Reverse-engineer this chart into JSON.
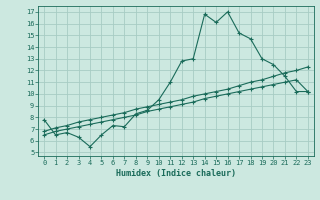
{
  "xlabel": "Humidex (Indice chaleur)",
  "bg_color": "#cce8e0",
  "line_color": "#1a6b5a",
  "grid_color": "#a8ccc4",
  "xlim": [
    -0.5,
    23.5
  ],
  "ylim": [
    4.7,
    17.5
  ],
  "xticks": [
    0,
    1,
    2,
    3,
    4,
    5,
    6,
    7,
    8,
    9,
    10,
    11,
    12,
    13,
    14,
    15,
    16,
    17,
    18,
    19,
    20,
    21,
    22,
    23
  ],
  "yticks": [
    5,
    6,
    7,
    8,
    9,
    10,
    11,
    12,
    13,
    14,
    15,
    16,
    17
  ],
  "line1_x": [
    0,
    1,
    2,
    3,
    4,
    5,
    6,
    7,
    8,
    9,
    10,
    11,
    12,
    13,
    14,
    15,
    16,
    17,
    18,
    19,
    20,
    21,
    22,
    23
  ],
  "line1_y": [
    7.8,
    6.5,
    6.7,
    6.3,
    5.5,
    6.5,
    7.3,
    7.2,
    8.3,
    8.6,
    9.5,
    11.0,
    12.8,
    13.0,
    16.8,
    16.1,
    17.0,
    15.2,
    14.7,
    13.0,
    12.5,
    11.5,
    10.2,
    10.2
  ],
  "line2_x": [
    0,
    1,
    2,
    3,
    4,
    5,
    6,
    7,
    8,
    9,
    10,
    11,
    12,
    13,
    14,
    15,
    16,
    17,
    18,
    19,
    20,
    21,
    22,
    23
  ],
  "line2_y": [
    6.5,
    6.8,
    7.0,
    7.2,
    7.4,
    7.6,
    7.8,
    8.0,
    8.2,
    8.5,
    8.7,
    8.9,
    9.1,
    9.3,
    9.6,
    9.8,
    10.0,
    10.2,
    10.4,
    10.6,
    10.8,
    11.0,
    11.2,
    10.2
  ],
  "line3_x": [
    0,
    1,
    2,
    3,
    4,
    5,
    6,
    7,
    8,
    9,
    10,
    11,
    12,
    13,
    14,
    15,
    16,
    17,
    18,
    19,
    20,
    21,
    22,
    23
  ],
  "line3_y": [
    6.8,
    7.1,
    7.3,
    7.6,
    7.8,
    8.0,
    8.2,
    8.4,
    8.7,
    8.9,
    9.1,
    9.3,
    9.5,
    9.8,
    10.0,
    10.2,
    10.4,
    10.7,
    11.0,
    11.2,
    11.5,
    11.8,
    12.0,
    12.3
  ]
}
